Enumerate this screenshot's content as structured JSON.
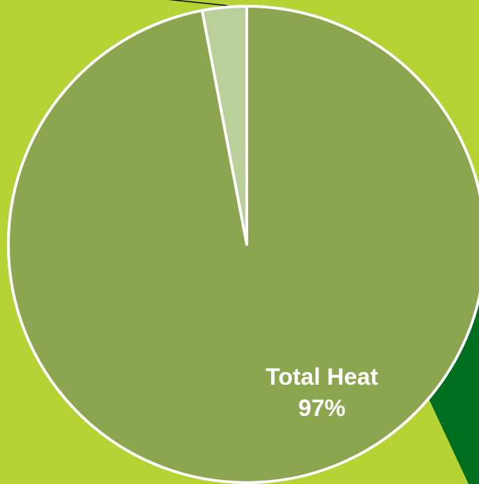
{
  "chart_data": {
    "type": "pie",
    "categories": [
      "Total Heat",
      null
    ],
    "values": [
      97,
      3
    ],
    "value_labels": [
      "97%",
      null
    ],
    "colors": [
      "#8ba64e",
      "#b9d09a"
    ]
  }
}
